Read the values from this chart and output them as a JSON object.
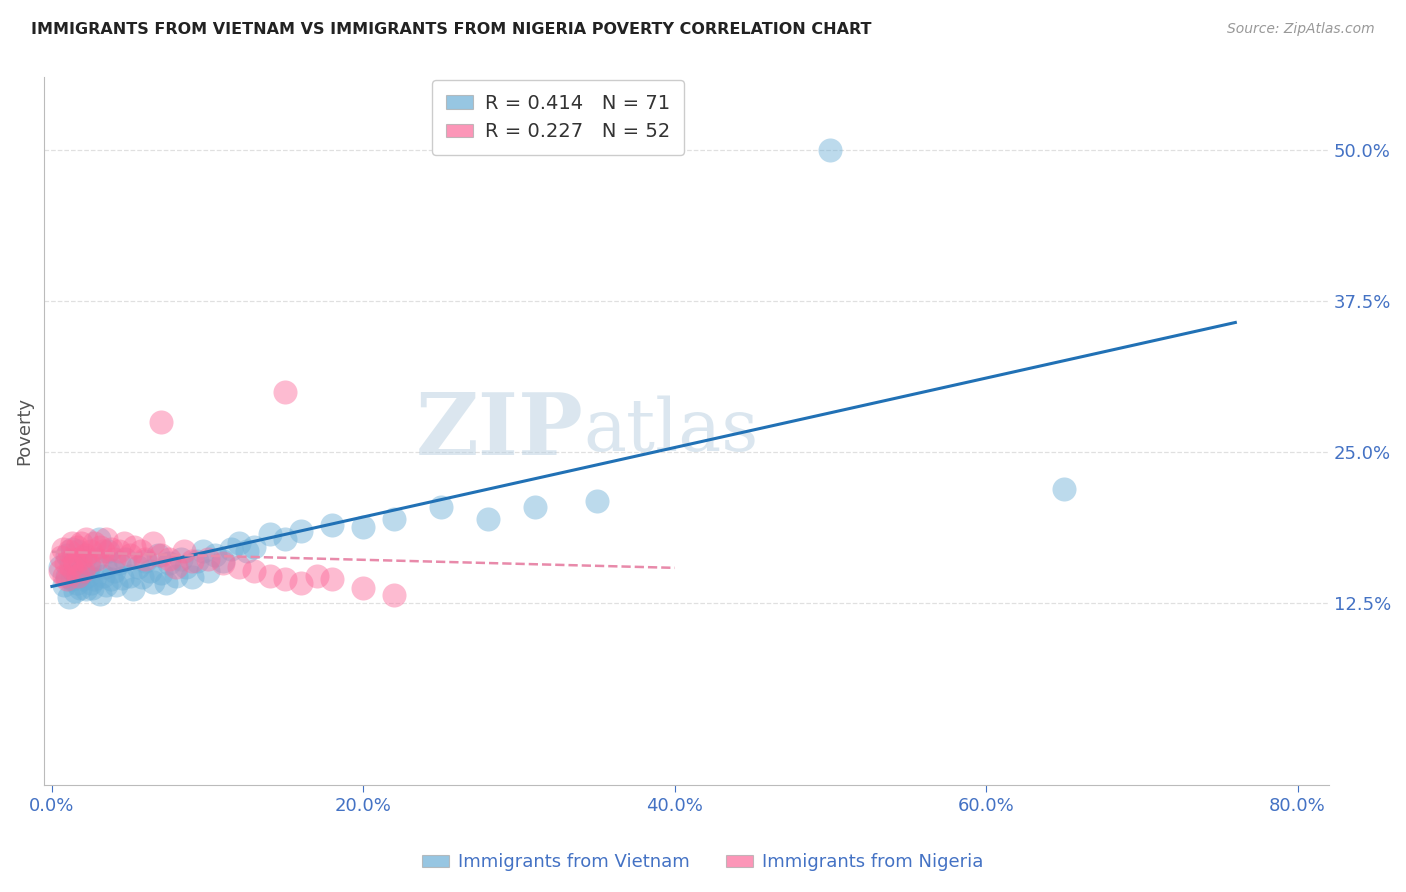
{
  "title": "IMMIGRANTS FROM VIETNAM VS IMMIGRANTS FROM NIGERIA POVERTY CORRELATION CHART",
  "source": "Source: ZipAtlas.com",
  "ylabel": "Poverty",
  "ytick_labels": [
    "12.5%",
    "25.0%",
    "37.5%",
    "50.0%"
  ],
  "ytick_values": [
    0.125,
    0.25,
    0.375,
    0.5
  ],
  "xtick_labels": [
    "0.0%",
    "20.0%",
    "40.0%",
    "60.0%",
    "80.0%"
  ],
  "xtick_values": [
    0.0,
    0.2,
    0.4,
    0.6,
    0.8
  ],
  "xlim": [
    -0.005,
    0.82
  ],
  "ylim": [
    -0.025,
    0.56
  ],
  "watermark_zip": "ZIP",
  "watermark_atlas": "atlas",
  "legend_line1": "R = 0.414   N = 71",
  "legend_line2": "R = 0.227   N = 52",
  "color_vietnam": "#6baed6",
  "color_nigeria": "#fb6a9a",
  "trendline_vietnam_color": "#2171b5",
  "trendline_nigeria_color": "#e88aaa",
  "background_color": "#ffffff",
  "grid_color": "#e0e0e0",
  "tick_color": "#4472c4",
  "title_color": "#222222",
  "ylabel_color": "#555555",
  "bottom_legend_label1": "Immigrants from Vietnam",
  "bottom_legend_label2": "Immigrants from Nigeria"
}
